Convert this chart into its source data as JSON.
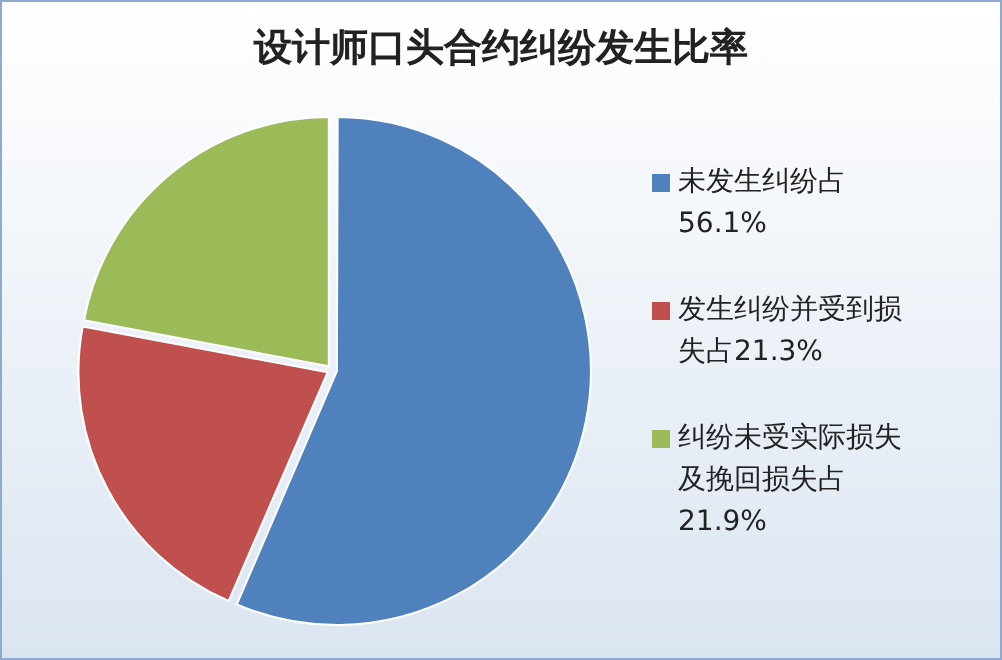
{
  "chart_data": {
    "type": "pie",
    "title": "设计师口头合约纠纷发生比率",
    "categories": [
      "未发生纠纷占56.1%",
      "发生纠纷并受到损失占21.3%",
      "纠纷未受实际损失及挽回损失占21.9%"
    ],
    "values": [
      56.1,
      21.3,
      21.9
    ],
    "colors": [
      "#4f81bd",
      "#c0504d",
      "#9bbb59"
    ],
    "legend": "right"
  }
}
